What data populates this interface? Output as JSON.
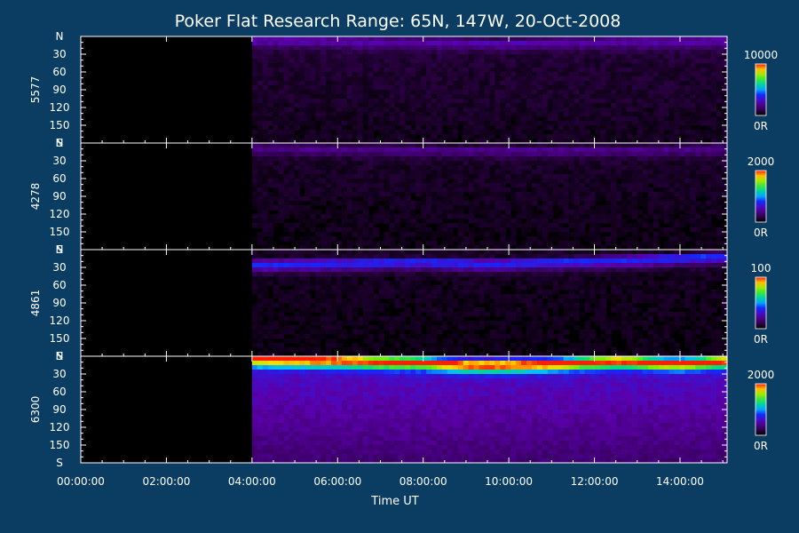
{
  "title": "Poker Flat Research Range: 65N, 147W, 20-Oct-2008",
  "colors": {
    "background": "#0b3d63",
    "foreground": "#ffffff",
    "no_data": "#000000"
  },
  "chart_data": {
    "type": "heatmap",
    "title": "Poker Flat Research Range: 65N, 147W, 20-Oct-2008",
    "xlabel": "Time UT",
    "x_ticks": [
      "00:00:00",
      "02:00:00",
      "04:00:00",
      "06:00:00",
      "08:00:00",
      "10:00:00",
      "12:00:00",
      "14:00:00"
    ],
    "x_range_hours": [
      0,
      15.1
    ],
    "data_start_hours": 4.0,
    "y_tick_labels": [
      "N",
      "30",
      "60",
      "90",
      "120",
      "150",
      "S"
    ],
    "y_range": [
      0,
      180
    ],
    "colorscale": "rainbow",
    "panels": [
      {
        "ylabel": "5577",
        "scale_max_label": "10000",
        "scale_min_label": "0R",
        "band_center_profile": [
          [
            4.0,
            6
          ],
          [
            5.0,
            6
          ],
          [
            6.0,
            7
          ],
          [
            7.0,
            8
          ],
          [
            8.0,
            8
          ],
          [
            9.0,
            10
          ],
          [
            10.0,
            10
          ],
          [
            11.0,
            9
          ],
          [
            12.0,
            8
          ],
          [
            13.0,
            7
          ],
          [
            14.0,
            8
          ],
          [
            15.1,
            6
          ]
        ],
        "band_intensity": 0.18,
        "background_intensity": 0.08
      },
      {
        "ylabel": "4278",
        "scale_max_label": "2000",
        "scale_min_label": "0R",
        "band_center_profile": [
          [
            4.0,
            8
          ],
          [
            6.0,
            9
          ],
          [
            8.0,
            11
          ],
          [
            10.0,
            12
          ],
          [
            12.0,
            11
          ],
          [
            14.0,
            10
          ],
          [
            15.1,
            8
          ]
        ],
        "band_intensity": 0.14,
        "background_intensity": 0.06
      },
      {
        "ylabel": "4861",
        "scale_max_label": "100",
        "scale_min_label": "0R",
        "band_center_profile": [
          [
            4.0,
            24
          ],
          [
            6.0,
            22
          ],
          [
            8.0,
            20
          ],
          [
            9.5,
            23
          ],
          [
            11.0,
            20
          ],
          [
            13.0,
            16
          ],
          [
            14.5,
            12
          ],
          [
            15.1,
            10
          ]
        ],
        "band_intensity": 0.35,
        "background_intensity": 0.05
      },
      {
        "ylabel": "6300",
        "scale_max_label": "2000",
        "scale_min_label": "0R",
        "band_center_profile": [
          [
            4.0,
            4
          ],
          [
            5.0,
            5
          ],
          [
            6.0,
            6
          ],
          [
            7.0,
            8
          ],
          [
            8.0,
            9
          ],
          [
            9.0,
            14
          ],
          [
            10.0,
            14
          ],
          [
            11.0,
            12
          ],
          [
            12.0,
            8
          ],
          [
            12.6,
            7
          ],
          [
            13.0,
            8
          ],
          [
            13.5,
            10
          ],
          [
            14.0,
            11
          ],
          [
            14.5,
            9
          ],
          [
            15.1,
            7
          ]
        ],
        "band_intensity": 0.75,
        "background_intensity": 0.32
      }
    ]
  }
}
